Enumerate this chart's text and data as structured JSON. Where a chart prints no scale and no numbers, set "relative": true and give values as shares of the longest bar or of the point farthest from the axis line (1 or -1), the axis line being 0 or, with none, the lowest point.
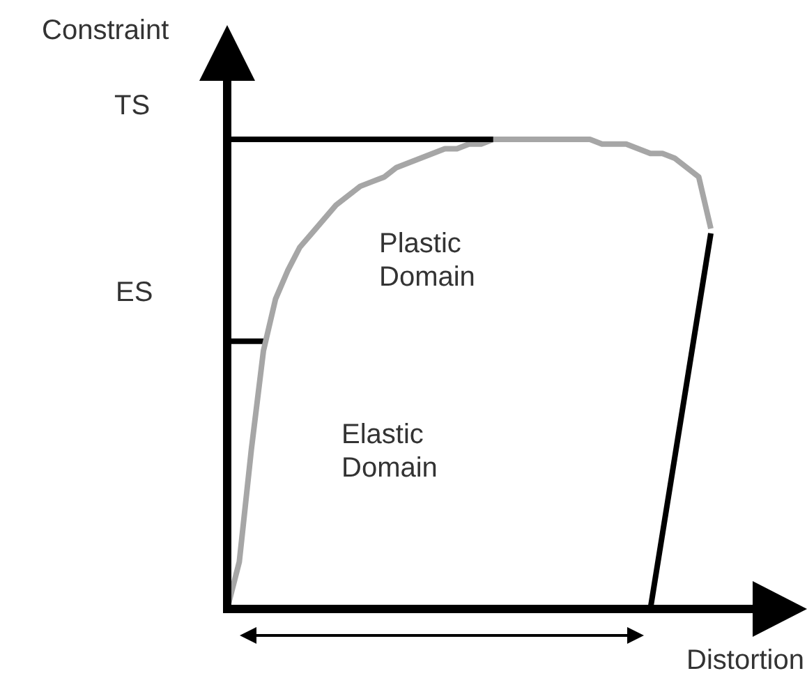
{
  "chart_data": {
    "type": "line",
    "relative": true,
    "xlabel": "Distortion",
    "ylabel": "Constraint",
    "annotations": [
      "Plastic Domain",
      "Elastic Domain",
      "ES"
    ],
    "legend": false,
    "categories": [
      null,
      null,
      null,
      null,
      null,
      null,
      null,
      null,
      null,
      null,
      null,
      null,
      null,
      null,
      null,
      null,
      null,
      null,
      null,
      null,
      null,
      null,
      null,
      null,
      null,
      null,
      null,
      null,
      null,
      null,
      null,
      null,
      null,
      null,
      null,
      null,
      null,
      null,
      null,
      null,
      null
    ],
    "series": [
      {
        "color": "#a6a6a6",
        "values": [
          0,
          0.1,
          0.34,
          0.55,
          0.66,
          0.72,
          0.77,
          0.8,
          0.83,
          0.86,
          0.88,
          0.9,
          0.91,
          0.92,
          0.94,
          0.95,
          0.96,
          0.97,
          0.98,
          0.98,
          0.99,
          0.99,
          1,
          1,
          1,
          1,
          1,
          1,
          1,
          1,
          1,
          0.99,
          0.99,
          0.99,
          0.98,
          0.97,
          0.97,
          0.96,
          0.94,
          0.92,
          0.81
        ]
      },
      {
        "color": "#000000",
        "values": [
          null,
          null,
          null,
          null,
          null,
          null,
          null,
          null,
          null,
          null,
          null,
          null,
          null,
          null,
          null,
          null,
          null,
          null,
          null,
          null,
          null,
          null,
          null,
          null,
          null,
          null,
          null,
          null,
          null,
          null,
          null,
          null,
          null,
          null,
          null,
          0,
          null,
          null,
          null,
          null,
          0.8
        ]
      },
      {
        "color": "#000000",
        "values": [
          0.57,
          0.57,
          0.57,
          0.57,
          null,
          null,
          null,
          null,
          null,
          null,
          null,
          null,
          null,
          null,
          null,
          null,
          null,
          null,
          null,
          null,
          null,
          null,
          null,
          null,
          null,
          null,
          null,
          null,
          null,
          null,
          null,
          null,
          null,
          null,
          null,
          null,
          null,
          null,
          null,
          null,
          null
        ]
      }
    ],
    "ref_lines": [
      {
        "axis": "y",
        "value": 1,
        "label": "TS",
        "color": "#000000"
      }
    ],
    "marker": "none",
    "line_style": "solid"
  }
}
